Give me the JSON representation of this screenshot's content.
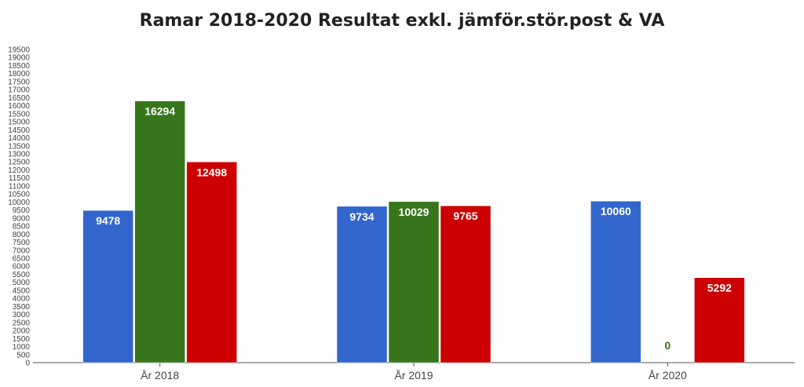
{
  "chart_data": {
    "type": "bar",
    "title": "Ramar 2018-2020 Resultat exkl. jämför.stör.post & VA",
    "xlabel": "",
    "ylabel": "",
    "categories": [
      "År 2018",
      "År 2019",
      "År 2020"
    ],
    "series": [
      {
        "color": "#3366cc",
        "values": [
          9478,
          9734,
          10060
        ],
        "labels": [
          "9478",
          "9734",
          "10060"
        ]
      },
      {
        "color": "#38761d",
        "values": [
          16294,
          10029,
          0
        ],
        "labels": [
          "16294",
          "10029",
          "0"
        ]
      },
      {
        "color": "#cc0000",
        "values": [
          12498,
          9765,
          5292
        ],
        "labels": [
          "12498",
          "9765",
          "5292"
        ]
      }
    ],
    "ylim": [
      0,
      19500
    ],
    "ytick_step": 500,
    "yticks": [
      "0",
      "500",
      "1000",
      "1500",
      "2000",
      "2500",
      "3000",
      "3500",
      "4000",
      "4500",
      "5000",
      "5500",
      "6000",
      "6500",
      "7000",
      "7500",
      "8000",
      "8500",
      "9000",
      "9500",
      "10000",
      "10500",
      "11000",
      "11500",
      "12000",
      "12500",
      "13000",
      "13500",
      "14000",
      "14500",
      "15000",
      "15500",
      "16000",
      "16500",
      "17000",
      "17500",
      "18000",
      "18500",
      "19000",
      "19500"
    ],
    "grid": false,
    "legend": "none"
  }
}
